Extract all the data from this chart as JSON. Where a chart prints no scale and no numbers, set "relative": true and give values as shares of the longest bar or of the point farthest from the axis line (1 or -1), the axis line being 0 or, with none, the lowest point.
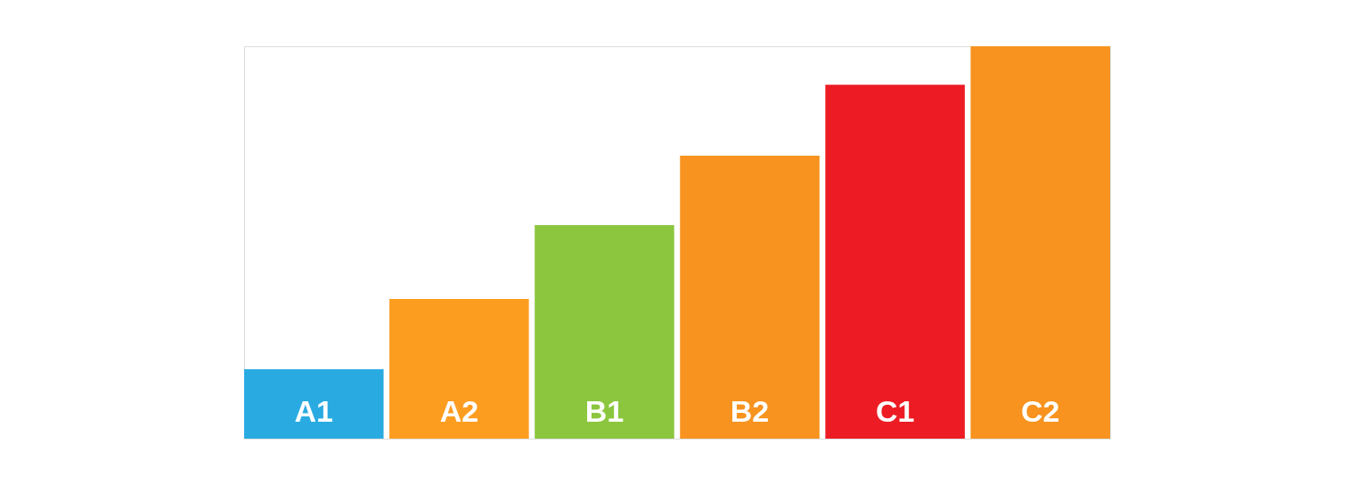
{
  "chart_data": {
    "type": "bar",
    "relative": true,
    "categories": [
      "A1",
      "A2",
      "B1",
      "B2",
      "C1",
      "C2"
    ],
    "values": [
      0.177,
      0.356,
      0.544,
      0.721,
      0.902,
      1
    ],
    "colors": [
      "#29abe2",
      "#fd9d20",
      "#8cc63f",
      "#f7931e",
      "#ed1c24",
      "#f7931e"
    ],
    "grid": false
  }
}
